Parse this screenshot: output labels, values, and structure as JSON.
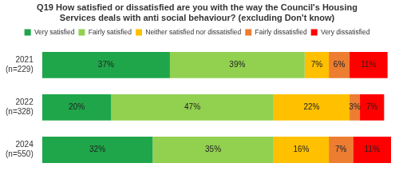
{
  "chart_data": {
    "type": "bar",
    "title": "Q19 How satisfied or dissatisfied are you with the way the Council's Housing Services deals with anti social behaviour? (excluding Don't know)",
    "categories": [
      "2021 (n=229)",
      "2022 (n=328)",
      "2024 (n=550)"
    ],
    "series": [
      {
        "name": "Very satisfied",
        "color": "#1fa64a",
        "values": [
          37,
          20,
          32
        ],
        "value_labels": [
          "37%",
          "20%",
          "32%"
        ]
      },
      {
        "name": "Fairly satisfied",
        "color": "#92d050",
        "values": [
          39,
          47,
          35
        ],
        "value_labels": [
          "39%",
          "47%",
          "35%"
        ]
      },
      {
        "name": "Neither satisfied nor dissatisfied",
        "color": "#ffc000",
        "values": [
          7,
          22,
          16
        ],
        "value_labels": [
          "7%",
          "22%",
          "16%"
        ]
      },
      {
        "name": "Fairly dissatisfied",
        "color": "#ed7d31",
        "values": [
          6,
          3,
          7
        ],
        "value_labels": [
          "6%",
          "3%",
          "7%"
        ]
      },
      {
        "name": "Very dissatisfied",
        "color": "#ff0000",
        "values": [
          11,
          7,
          11
        ],
        "value_labels": [
          "11%",
          "7%",
          "11%"
        ]
      }
    ],
    "orientation": "horizontal",
    "stacked": true,
    "data_labels": true,
    "legend": "top",
    "grid": false,
    "tick_labels": "y"
  }
}
